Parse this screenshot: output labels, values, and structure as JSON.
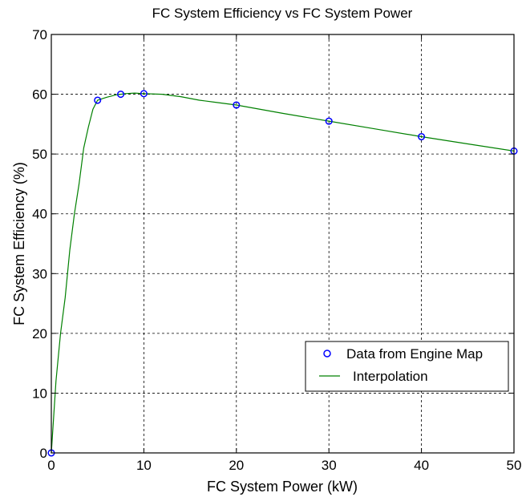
{
  "chart_data": {
    "type": "line",
    "title": "FC System Efficiency vs FC System Power",
    "xlabel": "FC System Power (kW)",
    "ylabel": "FC System Efficiency (%)",
    "xlim": [
      0,
      50
    ],
    "ylim": [
      0,
      70
    ],
    "xticks": [
      0,
      10,
      20,
      30,
      40,
      50
    ],
    "yticks": [
      0,
      10,
      20,
      30,
      40,
      50,
      60,
      70
    ],
    "grid": true,
    "legend_position": "lower-right",
    "series": [
      {
        "name": "Data from Engine Map",
        "kind": "markers",
        "color": "#0000ff",
        "x": [
          0,
          5,
          7.5,
          10,
          20,
          30,
          40,
          50
        ],
        "y": [
          0,
          59,
          60,
          60.1,
          58.2,
          55.5,
          52.9,
          50.5
        ]
      },
      {
        "name": "Interpolation",
        "kind": "line",
        "color": "#008000",
        "x": [
          0,
          0.5,
          1,
          1.5,
          2,
          2.5,
          3,
          3.5,
          4,
          4.5,
          5,
          6,
          7,
          7.5,
          8,
          9,
          10,
          12,
          14,
          16,
          18,
          20,
          25,
          30,
          35,
          40,
          45,
          50
        ],
        "y": [
          0,
          12,
          20,
          26,
          34,
          40,
          45,
          51,
          54.5,
          57.5,
          59,
          59.5,
          59.9,
          60,
          60.1,
          60.2,
          60.1,
          60,
          59.6,
          59,
          58.6,
          58.2,
          56.8,
          55.5,
          54.2,
          52.9,
          51.7,
          50.5
        ]
      }
    ]
  }
}
